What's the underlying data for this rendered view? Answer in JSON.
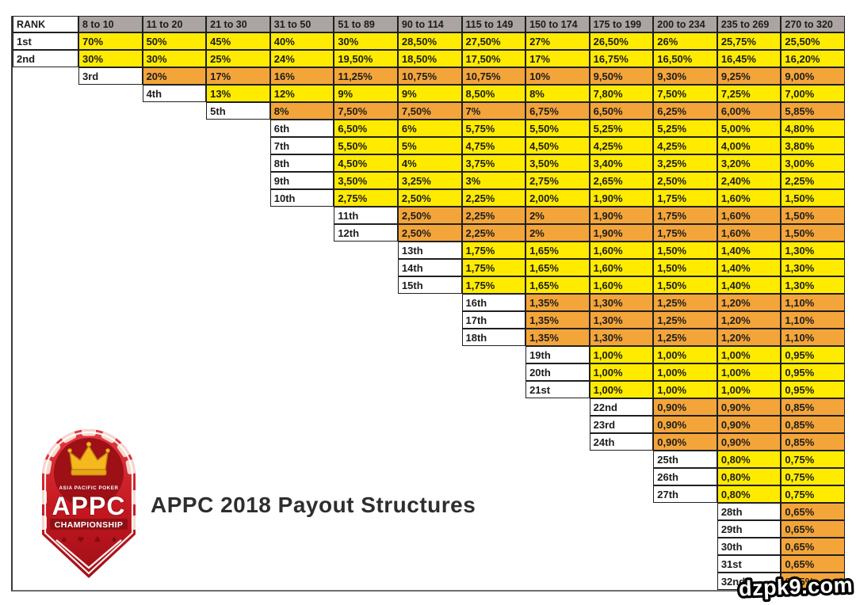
{
  "title_block": {
    "text": "APPC 2018 Payout Structures"
  },
  "watermark": {
    "text": "dzpk9.com"
  },
  "logo": {
    "top_text": "ASIA PACIFIC POKER",
    "main_text": "APPC",
    "sub_text": "CHAMPIONSHIP",
    "suits": [
      "♠",
      "♥",
      "♣",
      "♦"
    ],
    "badge_red": "#c4161f",
    "badge_dark_red": "#8e1016",
    "crown_gold": "#f5b91e"
  },
  "colors": {
    "yellow_band": "#ffeb00",
    "orange_band": "#f3a53a",
    "header_bg": "#aba4a2",
    "border": "#1f1f1f"
  },
  "chart_data": {
    "type": "table",
    "title": "APPC 2018 Payout Structures",
    "rank_header": "RANK",
    "columns": [
      "8 to 10",
      "11 to 20",
      "21 to 30",
      "31 to 50",
      "51 to 89",
      "90 to 114",
      "115 to 149",
      "150 to 174",
      "175 to 199",
      "200 to 234",
      "235 to 269",
      "270 to 320"
    ],
    "rows": [
      {
        "rank": "1st",
        "offset": 0,
        "band": "yellow",
        "values": [
          "70%",
          "50%",
          "45%",
          "40%",
          "30%",
          "28,50%",
          "27,50%",
          "27%",
          "26,50%",
          "26%",
          "25,75%",
          "25,50%"
        ]
      },
      {
        "rank": "2nd",
        "offset": 0,
        "band": "yellow",
        "values": [
          "30%",
          "30%",
          "25%",
          "24%",
          "19,50%",
          "18,50%",
          "17,50%",
          "17%",
          "16,75%",
          "16,50%",
          "16,45%",
          "16,20%"
        ]
      },
      {
        "rank": "3rd",
        "offset": 1,
        "band": "orange",
        "values": [
          "20%",
          "17%",
          "16%",
          "11,25%",
          "10,75%",
          "10,75%",
          "10%",
          "9,50%",
          "9,30%",
          "9,25%",
          "9,00%"
        ]
      },
      {
        "rank": "4th",
        "offset": 2,
        "band": "yellow",
        "values": [
          "13%",
          "12%",
          "9%",
          "9%",
          "8,50%",
          "8%",
          "7,80%",
          "7,50%",
          "7,25%",
          "7,00%"
        ]
      },
      {
        "rank": "5th",
        "offset": 3,
        "band": "orange",
        "values": [
          "8%",
          "7,50%",
          "7,50%",
          "7%",
          "6,75%",
          "6,50%",
          "6,25%",
          "6,00%",
          "5,85%"
        ]
      },
      {
        "rank": "6th",
        "offset": 4,
        "band": "yellow",
        "values": [
          "6,50%",
          "6%",
          "5,75%",
          "5,50%",
          "5,25%",
          "5,25%",
          "5,00%",
          "4,80%"
        ]
      },
      {
        "rank": "7th",
        "offset": 4,
        "band": "yellow",
        "values": [
          "5,50%",
          "5%",
          "4,75%",
          "4,50%",
          "4,25%",
          "4,25%",
          "4,00%",
          "3,80%"
        ]
      },
      {
        "rank": "8th",
        "offset": 4,
        "band": "yellow",
        "values": [
          "4,50%",
          "4%",
          "3,75%",
          "3,50%",
          "3,40%",
          "3,25%",
          "3,20%",
          "3,00%"
        ]
      },
      {
        "rank": "9th",
        "offset": 4,
        "band": "yellow",
        "values": [
          "3,50%",
          "3,25%",
          "3%",
          "2,75%",
          "2,65%",
          "2,50%",
          "2,40%",
          "2,25%"
        ]
      },
      {
        "rank": "10th",
        "offset": 4,
        "band": "yellow",
        "values": [
          "2,75%",
          "2,50%",
          "2,25%",
          "2,00%",
          "1,90%",
          "1,75%",
          "1,60%",
          "1,50%"
        ]
      },
      {
        "rank": "11th",
        "offset": 5,
        "band": "orange",
        "values": [
          "2,50%",
          "2,25%",
          "2%",
          "1,90%",
          "1,75%",
          "1,60%",
          "1,50%"
        ]
      },
      {
        "rank": "12th",
        "offset": 5,
        "band": "orange",
        "values": [
          "2,50%",
          "2,25%",
          "2%",
          "1,90%",
          "1,75%",
          "1,60%",
          "1,50%"
        ]
      },
      {
        "rank": "13th",
        "offset": 6,
        "band": "yellow",
        "values": [
          "1,75%",
          "1,65%",
          "1,60%",
          "1,50%",
          "1,40%",
          "1,30%"
        ]
      },
      {
        "rank": "14th",
        "offset": 6,
        "band": "yellow",
        "values": [
          "1,75%",
          "1,65%",
          "1,60%",
          "1,50%",
          "1,40%",
          "1,30%"
        ]
      },
      {
        "rank": "15th",
        "offset": 6,
        "band": "yellow",
        "values": [
          "1,75%",
          "1,65%",
          "1,60%",
          "1,50%",
          "1,40%",
          "1,30%"
        ]
      },
      {
        "rank": "16th",
        "offset": 7,
        "band": "orange",
        "values": [
          "1,35%",
          "1,30%",
          "1,25%",
          "1,20%",
          "1,10%"
        ]
      },
      {
        "rank": "17th",
        "offset": 7,
        "band": "orange",
        "values": [
          "1,35%",
          "1,30%",
          "1,25%",
          "1,20%",
          "1,10%"
        ]
      },
      {
        "rank": "18th",
        "offset": 7,
        "band": "orange",
        "values": [
          "1,35%",
          "1,30%",
          "1,25%",
          "1,20%",
          "1,10%"
        ]
      },
      {
        "rank": "19th",
        "offset": 8,
        "band": "yellow",
        "values": [
          "1,00%",
          "1,00%",
          "1,00%",
          "0,95%"
        ]
      },
      {
        "rank": "20th",
        "offset": 8,
        "band": "yellow",
        "values": [
          "1,00%",
          "1,00%",
          "1,00%",
          "0,95%"
        ]
      },
      {
        "rank": "21st",
        "offset": 8,
        "band": "yellow",
        "values": [
          "1,00%",
          "1,00%",
          "1,00%",
          "0,95%"
        ]
      },
      {
        "rank": "22nd",
        "offset": 9,
        "band": "orange",
        "values": [
          "0,90%",
          "0,90%",
          "0,85%"
        ]
      },
      {
        "rank": "23rd",
        "offset": 9,
        "band": "orange",
        "values": [
          "0,90%",
          "0,90%",
          "0,85%"
        ]
      },
      {
        "rank": "24th",
        "offset": 9,
        "band": "orange",
        "values": [
          "0,90%",
          "0,90%",
          "0,85%"
        ]
      },
      {
        "rank": "25th",
        "offset": 10,
        "band": "yellow",
        "values": [
          "0,80%",
          "0,75%"
        ]
      },
      {
        "rank": "26th",
        "offset": 10,
        "band": "yellow",
        "values": [
          "0,80%",
          "0,75%"
        ]
      },
      {
        "rank": "27th",
        "offset": 10,
        "band": "yellow",
        "values": [
          "0,80%",
          "0,75%"
        ]
      },
      {
        "rank": "28th",
        "offset": 11,
        "band": "orange",
        "values": [
          "0,65%"
        ]
      },
      {
        "rank": "29th",
        "offset": 11,
        "band": "orange",
        "values": [
          "0,65%"
        ]
      },
      {
        "rank": "30th",
        "offset": 11,
        "band": "orange",
        "values": [
          "0,65%"
        ]
      },
      {
        "rank": "31st",
        "offset": 11,
        "band": "orange",
        "values": [
          "0,65%"
        ]
      },
      {
        "rank": "32nd",
        "offset": 11,
        "band": "orange",
        "values": [
          "0,65%"
        ]
      }
    ]
  }
}
